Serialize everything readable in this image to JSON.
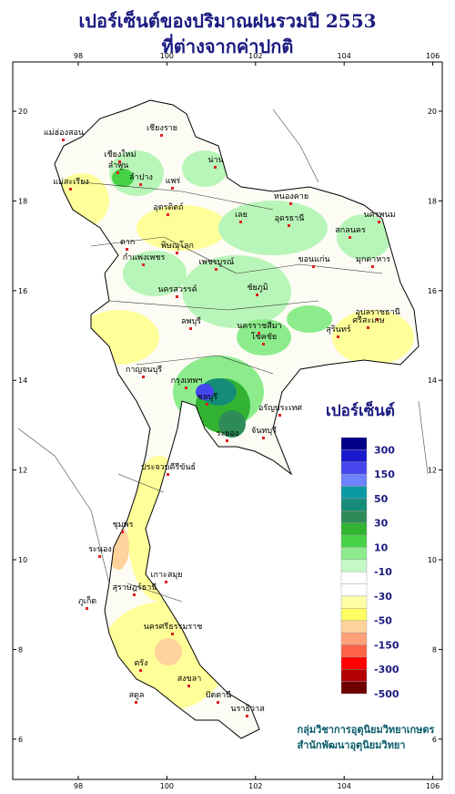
{
  "header": {
    "title_lines": [
      "เปอร์เซ็นต์ของปริมาณฝนรวมปี  2553",
      "ที่ต่างจากค่าปกติ"
    ]
  },
  "map": {
    "lon_ticks": [
      98,
      100,
      102,
      104,
      106
    ],
    "lat_ticks": [
      20,
      18,
      16,
      14,
      12,
      10,
      8,
      6
    ],
    "places": [
      "แม่ฮ่องสอน",
      "เชียงราย",
      "เชียงใหม่",
      "ลำพูน",
      "ลำปาง",
      "น่าน",
      "แพร่",
      "แม่สะเรียง",
      "อุตรดิตถ์",
      "เลย",
      "หนองคาย",
      "อุดรธานี",
      "นครพนม",
      "สกลนคร",
      "มุกดาหาร",
      "ตาก",
      "พิษณุโลก",
      "กำแพงเพชร",
      "เพชรบูรณ์",
      "ขอนแก่น",
      "นครสวรรค์",
      "ชัยภูมิ",
      "อุบลราชธานี",
      "สุรินทร์",
      "ศรีสะเกษ",
      "นครราชสีมา",
      "โชคชัย",
      "ลพบุรี",
      "กาญจนบุรี",
      "กรุงเทพฯ",
      "ชลบุรี",
      "ระยอง",
      "จันทบุรี",
      "อรัญประเทศ",
      "ประจวบคีรีขันธ์",
      "ชุมพร",
      "ระนอง",
      "สุราษฎร์ธานี",
      "เกาะสมุย",
      "ภูเก็ต",
      "นครศรีธรรมราช",
      "ตรัง",
      "สงขลา",
      "ปัตตานี",
      "นราธิวาส",
      "สตูล"
    ]
  },
  "legend": {
    "title": "เปอร์เซ็นต์",
    "labels": [
      300,
      150,
      50,
      30,
      10,
      -10,
      -30,
      -50,
      -150,
      -300,
      -500
    ],
    "colors": [
      "#00008b",
      "#1a1acd",
      "#4646f0",
      "#6e82ff",
      "#0a9aa6",
      "#148c78",
      "#2e8b57",
      "#32b432",
      "#46d246",
      "#8cec8c",
      "#c4f8c4",
      "#ffffff",
      "#ffffff",
      "#ffffa8",
      "#ffff64",
      "#ffd39b",
      "#ffa07a",
      "#ff6347",
      "#ff0000",
      "#b40000",
      "#6e0000"
    ]
  },
  "credits": [
    "กลุ่มวิชาการอุตุนิยมวิทยาเกษตร",
    "สำนักพัฒนาอุตุนิยมวิทยา"
  ]
}
